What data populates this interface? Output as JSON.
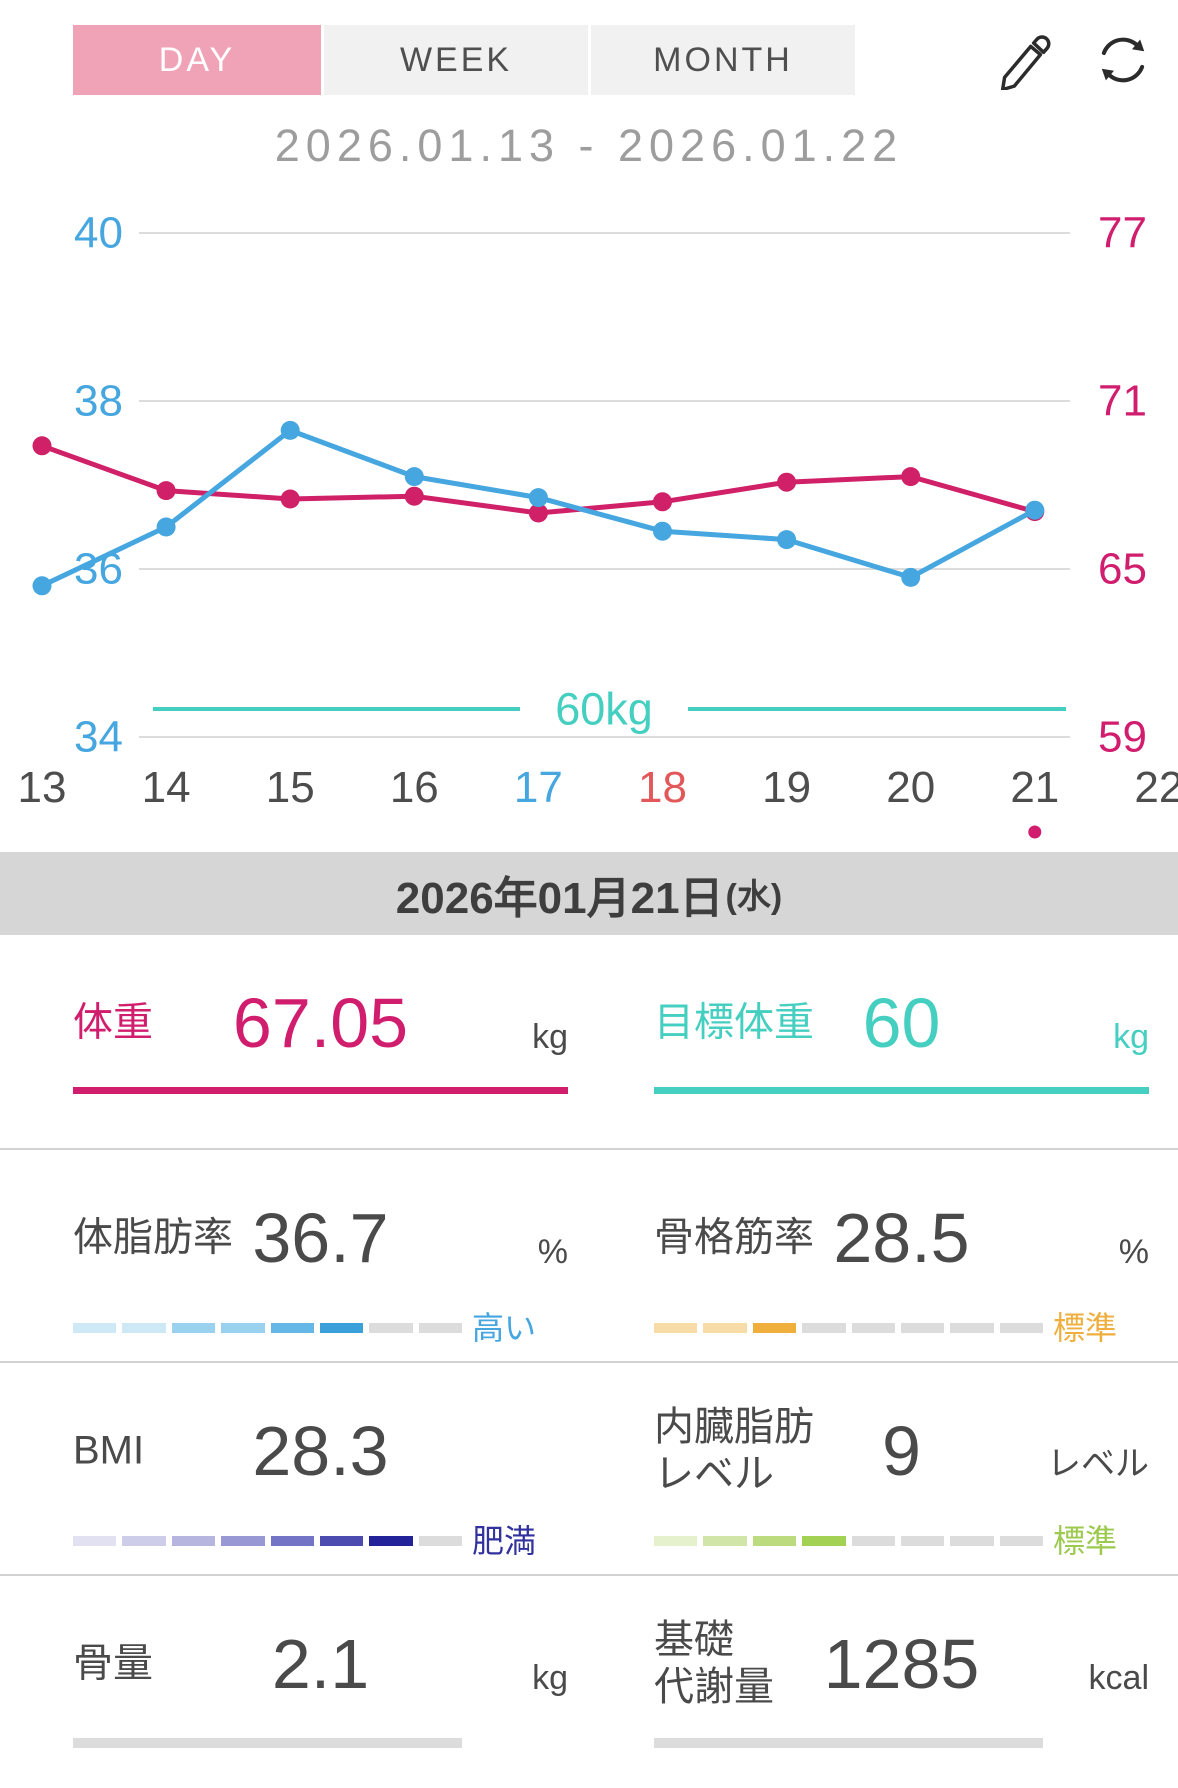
{
  "tabs": [
    {
      "label": "DAY",
      "active": true
    },
    {
      "label": "WEEK",
      "active": false
    },
    {
      "label": "MONTH",
      "active": false
    }
  ],
  "header": {
    "date_range": "2026.01.13 - 2026.01.22",
    "edit_icon": "pencil-icon",
    "sync_icon": "refresh-icon"
  },
  "selected_date": {
    "date": "2026年01月21日",
    "weekday": "(水)"
  },
  "chart_data": {
    "type": "line",
    "title": "",
    "x_days": [
      13,
      14,
      15,
      16,
      17,
      18,
      19,
      20,
      21,
      22
    ],
    "x_label_default_color": "#4d4d4d",
    "x_label_colors": {
      "17": "#45a6e0",
      "18": "#e25758"
    },
    "selected_day": 21,
    "selected_marker_color": "#d11d6d",
    "grid_color": "#dcdcdc",
    "grid_on": true,
    "legend": "none",
    "left_axis": {
      "ticks": [
        40,
        38,
        36,
        34
      ],
      "min": 34,
      "max": 40,
      "color": "#45a6e0"
    },
    "right_axis": {
      "ticks": [
        77,
        71,
        65,
        59
      ],
      "min": 59,
      "max": 77,
      "color": "#d11d6d"
    },
    "target_line": {
      "axis": "right",
      "value": 60,
      "label": "60kg",
      "color": "#45cfc0"
    },
    "series": [
      {
        "name": "体重(kg)",
        "axis": "right",
        "color": "#cf2068",
        "days": [
          13,
          14,
          15,
          16,
          17,
          18,
          19,
          20,
          21
        ],
        "values": [
          69.4,
          67.8,
          67.5,
          67.6,
          67.0,
          67.4,
          68.1,
          68.3,
          67.05
        ]
      },
      {
        "name": "体脂肪率(%)",
        "axis": "left",
        "color": "#45a6e0",
        "days": [
          13,
          14,
          15,
          16,
          17,
          18,
          19,
          20,
          21
        ],
        "values": [
          35.8,
          36.5,
          37.65,
          37.1,
          36.85,
          36.45,
          36.35,
          35.9,
          36.7
        ]
      }
    ]
  },
  "metrics": [
    {
      "id": "weight",
      "label_lines": [
        "体重"
      ],
      "value": "67.05",
      "unit": "kg",
      "label_color": "#d11d6d",
      "value_color": "#d11d6d",
      "unit_color": "#4a4a4a",
      "underline_color": "#d11d6d"
    },
    {
      "id": "target-weight",
      "label_lines": [
        "目標体重"
      ],
      "value": "60",
      "unit": "kg",
      "label_color": "#45cfc0",
      "value_color": "#45cfc0",
      "unit_color": "#45cfc0",
      "underline_color": "#45cfc0"
    },
    {
      "id": "body-fat",
      "label_lines": [
        "体脂肪率"
      ],
      "value": "36.7",
      "unit": "%",
      "rating": "高い",
      "rating_color": "#45a6e0",
      "gauge_segments": [
        "#cde9f6",
        "#cde9f6",
        "#9ad1ee",
        "#9ad1ee",
        "#65b7e5",
        "#3b9fda",
        "#dcdcdc",
        "#dcdcdc"
      ]
    },
    {
      "id": "skeletal-muscle",
      "label_lines": [
        "骨格筋率"
      ],
      "value": "28.5",
      "unit": "%",
      "rating": "標準",
      "rating_color": "#efaf3e",
      "gauge_segments": [
        "#f7dca8",
        "#f7dca8",
        "#f0af3c",
        "#dcdcdc",
        "#dcdcdc",
        "#dcdcdc",
        "#dcdcdc",
        "#dcdcdc"
      ]
    },
    {
      "id": "bmi",
      "label_lines": [
        "BMI"
      ],
      "value": "28.3",
      "unit": "",
      "rating": "肥満",
      "rating_color": "#32329e",
      "gauge_segments": [
        "#e1e1f2",
        "#cdcdea",
        "#b5b5e0",
        "#9898d4",
        "#7474c6",
        "#4b4bb0",
        "#222299",
        "#dcdcdc"
      ]
    },
    {
      "id": "visceral-fat",
      "label_lines": [
        "内臓脂肪",
        "レベル"
      ],
      "value": "9",
      "unit": "レベル",
      "rating": "標準",
      "rating_color": "#9cc94e",
      "gauge_segments": [
        "#e5f0cd",
        "#d2e5a8",
        "#bcda7e",
        "#a3d153",
        "#dcdcdc",
        "#dcdcdc",
        "#dcdcdc",
        "#dcdcdc"
      ]
    },
    {
      "id": "bone-mass",
      "label_lines": [
        "骨量"
      ],
      "value": "2.1",
      "unit": "kg",
      "gauge_segments": [
        "#dcdcdc"
      ]
    },
    {
      "id": "basal-metabolism",
      "label_lines": [
        "基礎",
        "代謝量"
      ],
      "value": "1285",
      "unit": "kcal",
      "gauge_segments": [
        "#dcdcdc"
      ]
    }
  ],
  "colors": {
    "accent_pink": "#d11d6d",
    "accent_blue": "#45a6e0",
    "accent_teal": "#45cfc0",
    "tab_active_bg": "#f0a3b7",
    "date_bar_bg": "#d6d6d6",
    "text_dark": "#4a4a4a"
  }
}
